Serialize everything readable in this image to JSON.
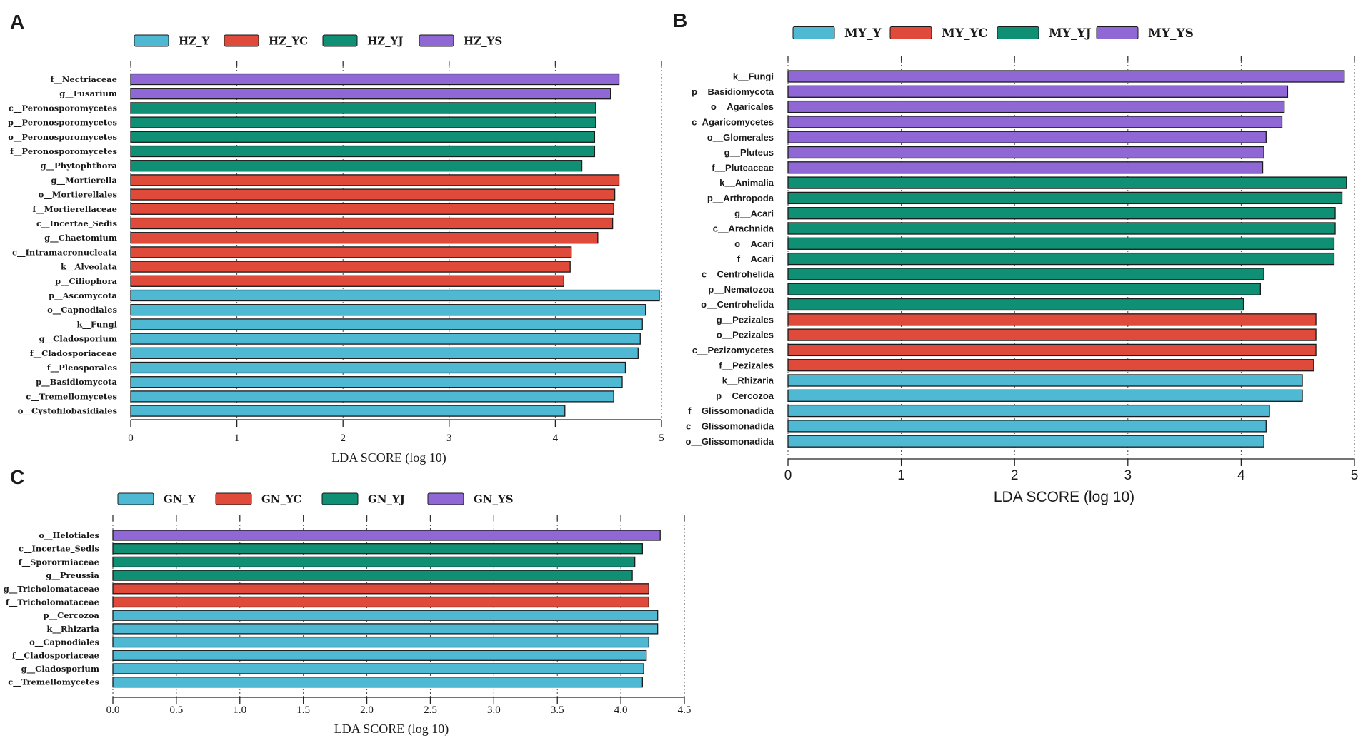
{
  "colors": {
    "Y": "#4FB9D4",
    "YC": "#E04A3A",
    "YJ": "#0F8F74",
    "YS": "#9068D6"
  },
  "chart_data": [
    {
      "panel": "A",
      "type": "bar",
      "orientation": "horizontal",
      "xlabel": "LDA SCORE (log 10)",
      "xlim": [
        0,
        5
      ],
      "xticks": [
        "0",
        "1",
        "2",
        "3",
        "4",
        "5"
      ],
      "legend": [
        {
          "label": "HZ_Y",
          "group": "Y"
        },
        {
          "label": "HZ_YC",
          "group": "YC"
        },
        {
          "label": "HZ_YJ",
          "group": "YJ"
        },
        {
          "label": "HZ_YS",
          "group": "YS"
        }
      ],
      "bars": [
        {
          "label": "f__Nectriaceae",
          "value": 4.6,
          "group": "YS"
        },
        {
          "label": "g__Fusarium",
          "value": 4.52,
          "group": "YS"
        },
        {
          "label": "c__Peronosporomycetes",
          "value": 4.38,
          "group": "YJ"
        },
        {
          "label": "p__Peronosporomycetes",
          "value": 4.38,
          "group": "YJ"
        },
        {
          "label": "o__Peronosporomycetes",
          "value": 4.37,
          "group": "YJ"
        },
        {
          "label": "f__Peronosporomycetes",
          "value": 4.37,
          "group": "YJ"
        },
        {
          "label": "g__Phytophthora",
          "value": 4.25,
          "group": "YJ"
        },
        {
          "label": "g__Mortierella",
          "value": 4.6,
          "group": "YC"
        },
        {
          "label": "o__Mortierellales",
          "value": 4.56,
          "group": "YC"
        },
        {
          "label": "f__Mortierellaceae",
          "value": 4.55,
          "group": "YC"
        },
        {
          "label": "c__Incertae_Sedis",
          "value": 4.54,
          "group": "YC"
        },
        {
          "label": "g__Chaetomium",
          "value": 4.4,
          "group": "YC"
        },
        {
          "label": "c__Intramacronucleata",
          "value": 4.15,
          "group": "YC"
        },
        {
          "label": "k__Alveolata",
          "value": 4.14,
          "group": "YC"
        },
        {
          "label": "p__Ciliophora",
          "value": 4.08,
          "group": "YC"
        },
        {
          "label": "p__Ascomycota",
          "value": 4.98,
          "group": "Y"
        },
        {
          "label": "o__Capnodiales",
          "value": 4.85,
          "group": "Y"
        },
        {
          "label": "k__Fungi",
          "value": 4.82,
          "group": "Y"
        },
        {
          "label": "g__Cladosporium",
          "value": 4.8,
          "group": "Y"
        },
        {
          "label": "f__Cladosporiaceae",
          "value": 4.78,
          "group": "Y"
        },
        {
          "label": "f__Pleosporales",
          "value": 4.66,
          "group": "Y"
        },
        {
          "label": "p__Basidiomycota",
          "value": 4.63,
          "group": "Y"
        },
        {
          "label": "c__Tremellomycetes",
          "value": 4.55,
          "group": "Y"
        },
        {
          "label": "o__Cystofilobasidiales",
          "value": 4.09,
          "group": "Y"
        }
      ]
    },
    {
      "panel": "B",
      "type": "bar",
      "orientation": "horizontal",
      "xlabel": "LDA SCORE (log 10)",
      "xlim": [
        0,
        5
      ],
      "xticks": [
        "0",
        "1",
        "2",
        "3",
        "4",
        "5"
      ],
      "legend": [
        {
          "label": "MY_Y",
          "group": "Y"
        },
        {
          "label": "MY_YC",
          "group": "YC"
        },
        {
          "label": "MY_YJ",
          "group": "YJ"
        },
        {
          "label": "MY_YS",
          "group": "YS"
        }
      ],
      "bars": [
        {
          "label": "k__Fungi",
          "value": 4.91,
          "group": "YS"
        },
        {
          "label": "p__Basidiomycota",
          "value": 4.41,
          "group": "YS"
        },
        {
          "label": "o__Agaricales",
          "value": 4.38,
          "group": "YS"
        },
        {
          "label": "c_Agaricomycetes",
          "value": 4.36,
          "group": "YS"
        },
        {
          "label": "o__Glomerales",
          "value": 4.22,
          "group": "YS"
        },
        {
          "label": "g__Pluteus",
          "value": 4.2,
          "group": "YS"
        },
        {
          "label": "f__Pluteaceae",
          "value": 4.19,
          "group": "YS"
        },
        {
          "label": "k__Animalia",
          "value": 4.93,
          "group": "YJ"
        },
        {
          "label": "p__Arthropoda",
          "value": 4.89,
          "group": "YJ"
        },
        {
          "label": "g__Acari",
          "value": 4.83,
          "group": "YJ"
        },
        {
          "label": "c__Arachnida",
          "value": 4.83,
          "group": "YJ"
        },
        {
          "label": "o__Acari",
          "value": 4.82,
          "group": "YJ"
        },
        {
          "label": "f__Acari",
          "value": 4.82,
          "group": "YJ"
        },
        {
          "label": "c__Centrohelida",
          "value": 4.2,
          "group": "YJ"
        },
        {
          "label": "p__Nematozoa",
          "value": 4.17,
          "group": "YJ"
        },
        {
          "label": "o__Centrohelida",
          "value": 4.02,
          "group": "YJ"
        },
        {
          "label": "g__Pezizales",
          "value": 4.66,
          "group": "YC"
        },
        {
          "label": "o__Pezizales",
          "value": 4.66,
          "group": "YC"
        },
        {
          "label": "c__Pezizomycetes",
          "value": 4.66,
          "group": "YC"
        },
        {
          "label": "f__Pezizales",
          "value": 4.64,
          "group": "YC"
        },
        {
          "label": "k__Rhizaria",
          "value": 4.54,
          "group": "Y"
        },
        {
          "label": "p__Cercozoa",
          "value": 4.54,
          "group": "Y"
        },
        {
          "label": "f__Glissomonadida",
          "value": 4.25,
          "group": "Y"
        },
        {
          "label": "c__Glissomonadida",
          "value": 4.22,
          "group": "Y"
        },
        {
          "label": "o__Glissomonadida",
          "value": 4.2,
          "group": "Y"
        }
      ]
    },
    {
      "panel": "C",
      "type": "bar",
      "orientation": "horizontal",
      "xlabel": "LDA SCORE (log 10)",
      "xlim": [
        0,
        4.5
      ],
      "xticks": [
        "0.0",
        "0.5",
        "1.0",
        "1.5",
        "2.0",
        "2.5",
        "3.0",
        "3.5",
        "4.0",
        "4.5"
      ],
      "legend": [
        {
          "label": "GN_Y",
          "group": "Y"
        },
        {
          "label": "GN_YC",
          "group": "YC"
        },
        {
          "label": "GN_YJ",
          "group": "YJ"
        },
        {
          "label": "GN_YS",
          "group": "YS"
        }
      ],
      "bars": [
        {
          "label": "o__Helotiales",
          "value": 4.31,
          "group": "YS"
        },
        {
          "label": "c__Incertae_Sedis",
          "value": 4.17,
          "group": "YJ"
        },
        {
          "label": "f__Sporormiaceae",
          "value": 4.11,
          "group": "YJ"
        },
        {
          "label": "g__Preussia",
          "value": 4.09,
          "group": "YJ"
        },
        {
          "label": "g__Tricholomataceae",
          "value": 4.22,
          "group": "YC"
        },
        {
          "label": "f__Tricholomataceae",
          "value": 4.22,
          "group": "YC"
        },
        {
          "label": "p__Cercozoa",
          "value": 4.29,
          "group": "Y"
        },
        {
          "label": "k__Rhizaria",
          "value": 4.29,
          "group": "Y"
        },
        {
          "label": "o__Capnodiales",
          "value": 4.22,
          "group": "Y"
        },
        {
          "label": "f__Cladosporiaceae",
          "value": 4.2,
          "group": "Y"
        },
        {
          "label": "g__Cladosporium",
          "value": 4.18,
          "group": "Y"
        },
        {
          "label": "c__Tremellomycetes",
          "value": 4.17,
          "group": "Y"
        }
      ]
    }
  ]
}
